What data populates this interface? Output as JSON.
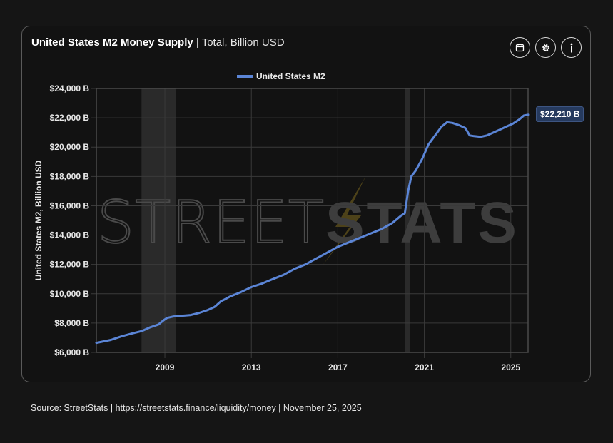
{
  "header": {
    "title": "United States M2 Money Supply",
    "separator": "|",
    "subtitle": "Total, Billion USD"
  },
  "toolbar": {
    "icons": [
      "calendar-icon",
      "gear-icon",
      "info-icon"
    ]
  },
  "footer": {
    "source_text": "Source:  StreetStats  |  https://streetstats.finance/liquidity/money  |  November 25, 2025"
  },
  "watermark": {
    "part1": "STREET",
    "part2": "STATS"
  },
  "colors": {
    "line": "#5b85d6",
    "recession_band": "#2a2a2a",
    "grid": "#3a3a3a",
    "label_bg": "#263a5e"
  },
  "chart_data": {
    "type": "line",
    "title": "United States M2 Money Supply",
    "subtitle": "Total, Billion USD",
    "xlabel": "",
    "ylabel": "United States M2, Billion USD",
    "xlim": [
      2005.83,
      2025.8
    ],
    "ylim": [
      6000,
      24000
    ],
    "grid": true,
    "legend": {
      "position": "top-center",
      "entries": [
        "United States M2"
      ]
    },
    "y_ticks": [
      6000,
      8000,
      10000,
      12000,
      14000,
      16000,
      18000,
      20000,
      22000,
      24000
    ],
    "y_tick_labels": [
      "$6,000 B",
      "$8,000 B",
      "$10,000 B",
      "$12,000 B",
      "$14,000 B",
      "$16,000 B",
      "$18,000 B",
      "$20,000 B",
      "$22,000 B",
      "$24,000 B"
    ],
    "x_ticks": [
      2009,
      2013,
      2017,
      2021,
      2025
    ],
    "x_tick_labels": [
      "2009",
      "2013",
      "2017",
      "2021",
      "2025"
    ],
    "recession_bands": [
      [
        2007.92,
        2009.5
      ],
      [
        2020.1,
        2020.35
      ]
    ],
    "end_label": "$22,210 B",
    "series": [
      {
        "name": "United States M2",
        "x": [
          2005.83,
          2006.5,
          2007.0,
          2007.5,
          2007.92,
          2008.3,
          2008.7,
          2008.95,
          2009.1,
          2009.4,
          2009.8,
          2010.2,
          2010.6,
          2011.0,
          2011.3,
          2011.6,
          2011.75,
          2012.0,
          2012.5,
          2013.0,
          2013.5,
          2014.0,
          2014.5,
          2015.0,
          2015.5,
          2016.0,
          2016.5,
          2017.0,
          2017.5,
          2018.0,
          2018.5,
          2019.0,
          2019.5,
          2019.9,
          2020.1,
          2020.25,
          2020.4,
          2020.6,
          2020.9,
          2021.2,
          2021.5,
          2021.8,
          2022.05,
          2022.3,
          2022.6,
          2022.9,
          2023.1,
          2023.3,
          2023.6,
          2023.9,
          2024.2,
          2024.5,
          2024.8,
          2025.1,
          2025.4,
          2025.6,
          2025.8
        ],
        "y": [
          6650,
          6850,
          7100,
          7300,
          7450,
          7700,
          7900,
          8200,
          8350,
          8450,
          8500,
          8550,
          8700,
          8900,
          9100,
          9500,
          9600,
          9800,
          10100,
          10450,
          10700,
          11000,
          11300,
          11700,
          12000,
          12400,
          12800,
          13200,
          13500,
          13800,
          14100,
          14400,
          14800,
          15300,
          15500,
          17000,
          18000,
          18400,
          19200,
          20200,
          20800,
          21400,
          21700,
          21650,
          21500,
          21300,
          20800,
          20750,
          20700,
          20800,
          21000,
          21200,
          21400,
          21600,
          21900,
          22150,
          22210
        ]
      }
    ]
  }
}
